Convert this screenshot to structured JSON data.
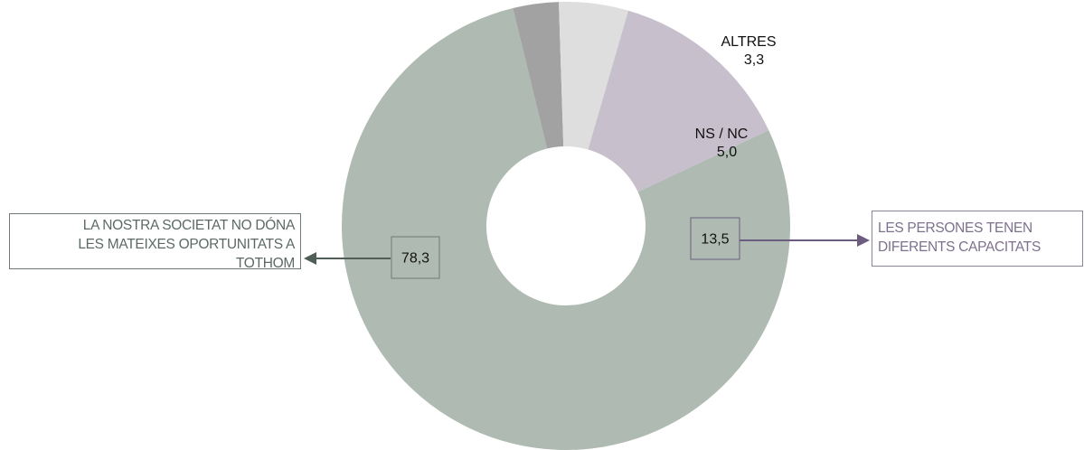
{
  "chart_data": {
    "type": "pie",
    "variant": "donut",
    "title": "",
    "slices": [
      {
        "label": "LA NOSTRA SOCIETAT NO DÓNA LES MATEIXES OPORTUNITATS A TOTHOM",
        "value": 78.3,
        "value_label": "78,3",
        "color": "#aebab2"
      },
      {
        "label": "ALTRES",
        "value": 3.3,
        "value_label": "3,3",
        "color": "#a2a2a2"
      },
      {
        "label": "NS / NC",
        "value": 5.0,
        "value_label": "5,0",
        "color": "#dedede"
      },
      {
        "label": "LES PERSONES TENEN DIFERENTS CAPACITATS",
        "value": 13.5,
        "value_label": "13,5",
        "color": "#c7c0cc"
      }
    ]
  },
  "callouts": {
    "left": {
      "lines": [
        "LA NOSTRA SOCIETAT NO DÓNA",
        "LES MATEIXES OPORTUNITATS A",
        "TOTHOM"
      ],
      "arrow_color": "#4f5f57"
    },
    "right": {
      "lines": [
        "LES PERSONES TENEN",
        "DIFERENTS CAPACITATS"
      ],
      "arrow_color": "#6c5d80"
    }
  }
}
